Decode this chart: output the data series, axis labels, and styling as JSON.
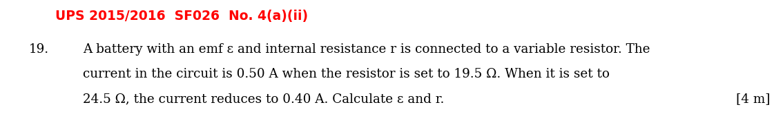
{
  "title": "UPS 2015/2016  SF026  No. 4(a)(ii)",
  "title_color": "#FF0000",
  "background_color": "#FFFFFF",
  "question_number": "19.",
  "line1": "A battery with an emf ε and internal resistance r is connected to a variable resistor. The",
  "line2": "current in the circuit is 0.50 A when the resistor is set to 19.5 Ω. When it is set to",
  "line3": "24.5 Ω, the current reduces to 0.40 A. Calculate ε and r.",
  "marks": "[4 m]",
  "fig_width": 11.34,
  "fig_height": 2.04,
  "dpi": 100
}
